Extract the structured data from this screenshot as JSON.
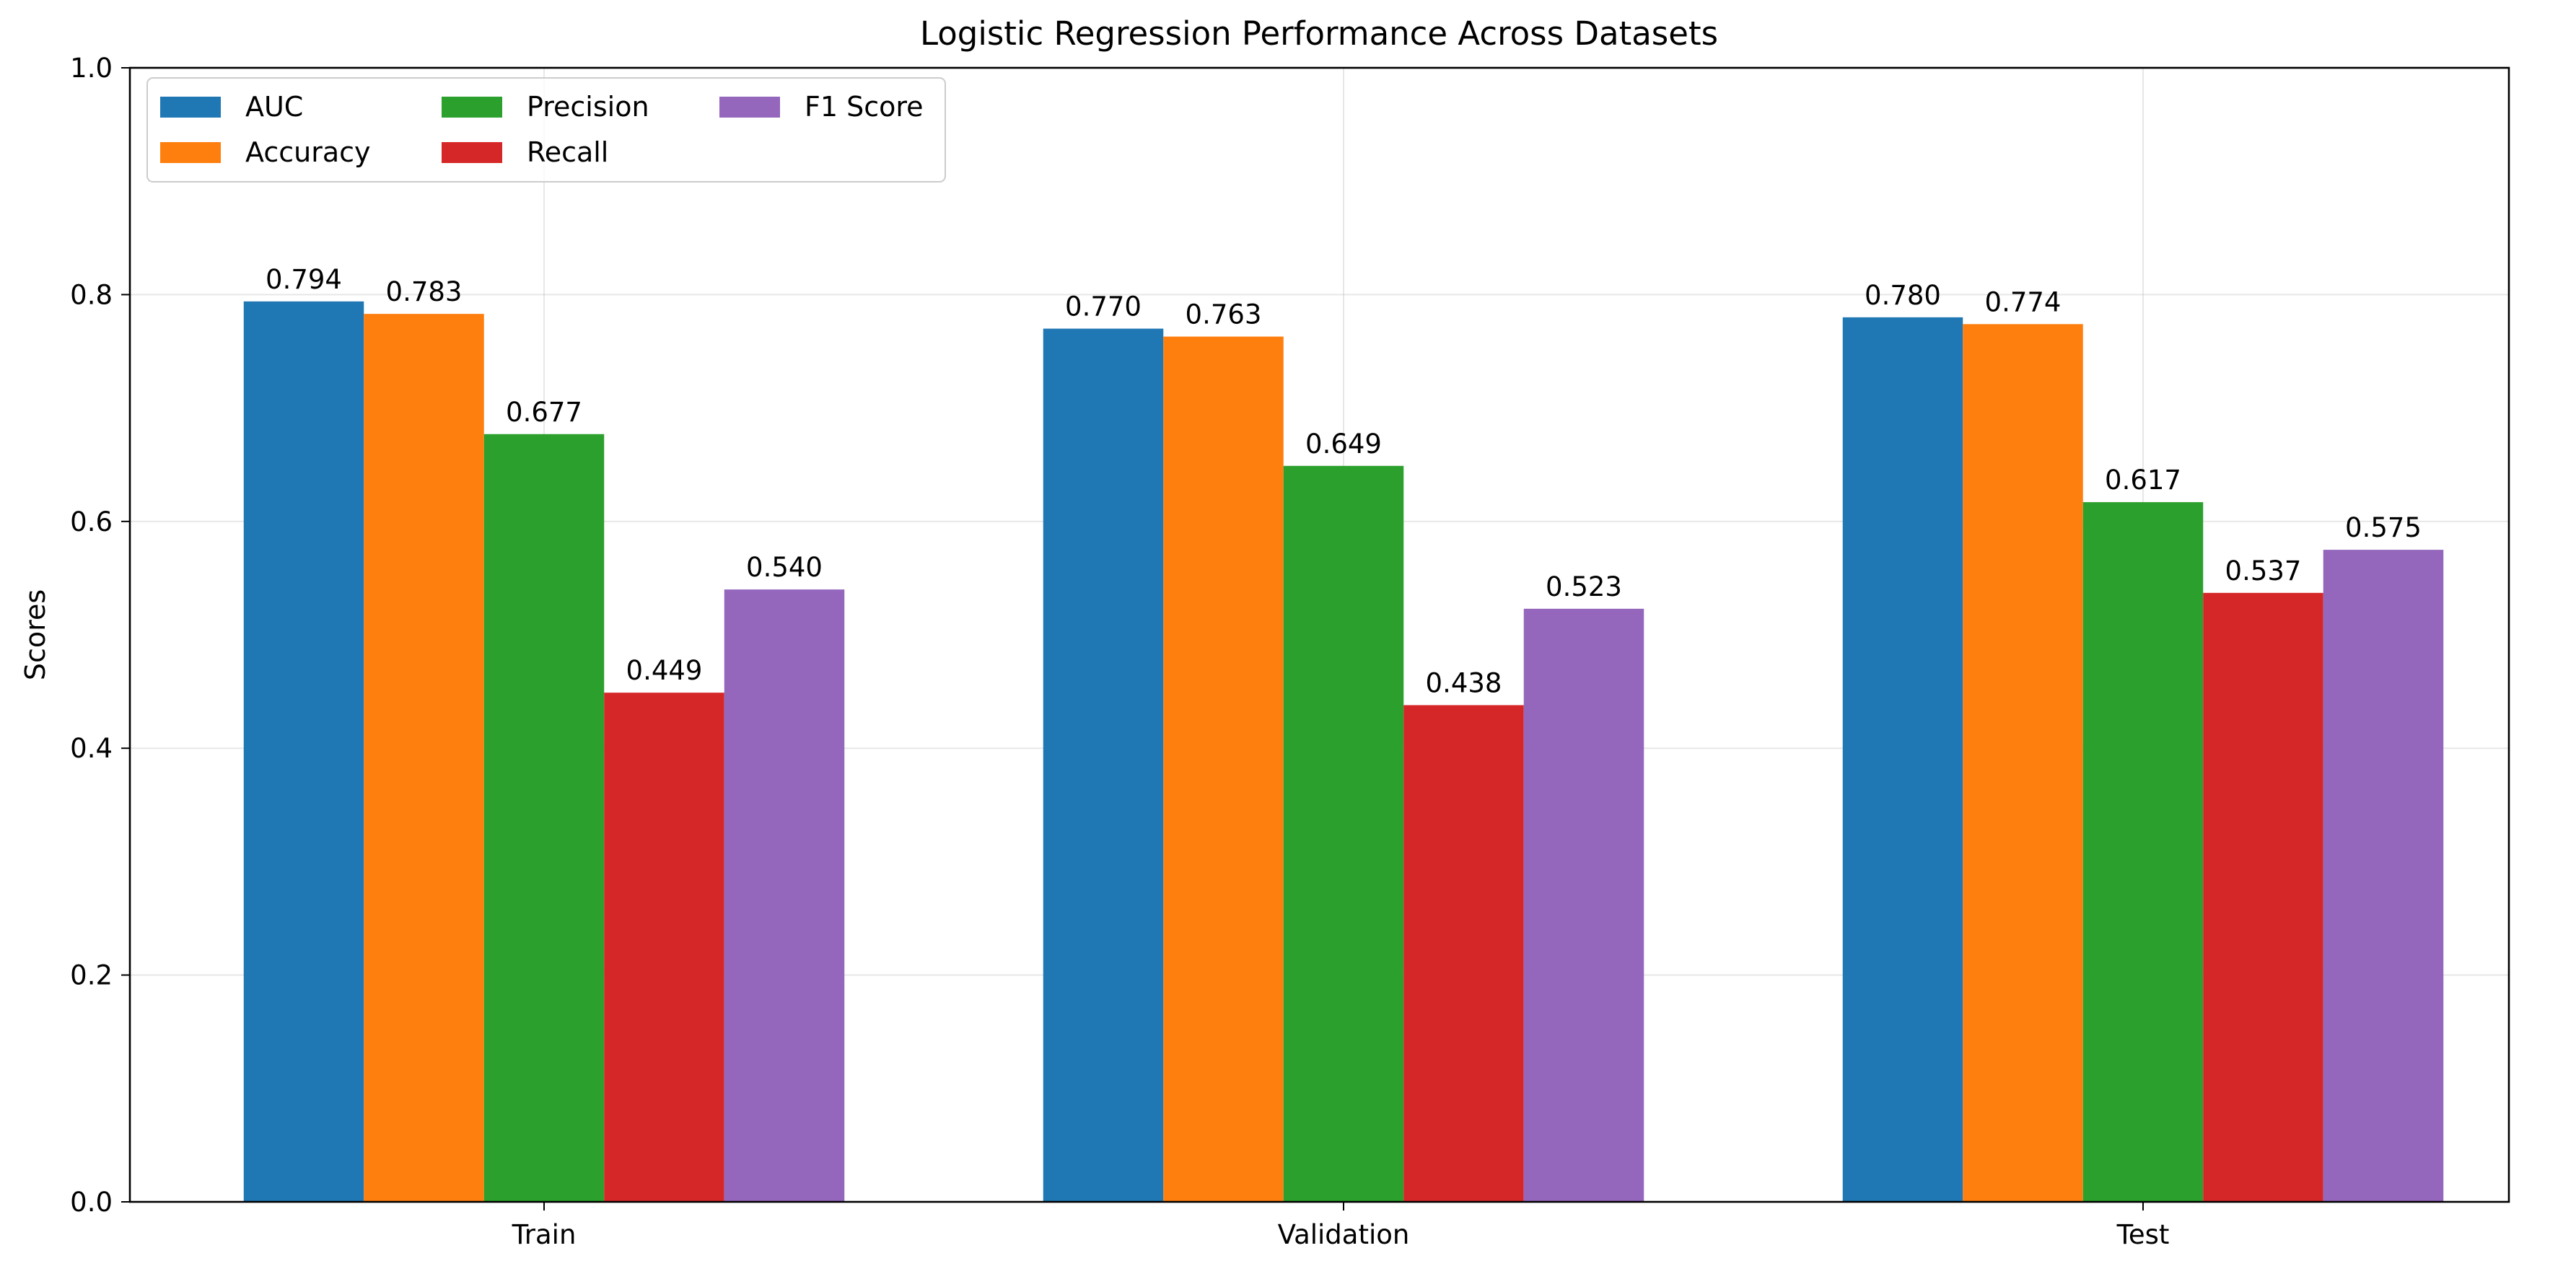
{
  "chart_data": {
    "type": "bar",
    "title": "Logistic Regression Performance Across Datasets",
    "xlabel": "",
    "ylabel": "Scores",
    "ylim": [
      0,
      1.0
    ],
    "yticks": [
      "0.0",
      "0.2",
      "0.4",
      "0.6",
      "0.8",
      "1.0"
    ],
    "grid": true,
    "legend_position": "top-left",
    "categories": [
      "Train",
      "Validation",
      "Test"
    ],
    "series": [
      {
        "name": "AUC",
        "color": "#1f77b4",
        "values": [
          0.794,
          0.77,
          0.78
        ],
        "labels": [
          "0.794",
          "0.770",
          "0.780"
        ]
      },
      {
        "name": "Accuracy",
        "color": "#ff7f0e",
        "values": [
          0.783,
          0.763,
          0.774
        ],
        "labels": [
          "0.783",
          "0.763",
          "0.774"
        ]
      },
      {
        "name": "Precision",
        "color": "#2ca02c",
        "values": [
          0.677,
          0.649,
          0.617
        ],
        "labels": [
          "0.677",
          "0.649",
          "0.617"
        ]
      },
      {
        "name": "Recall",
        "color": "#d62728",
        "values": [
          0.449,
          0.438,
          0.537
        ],
        "labels": [
          "0.449",
          "0.438",
          "0.537"
        ]
      },
      {
        "name": "F1 Score",
        "color": "#9467bd",
        "values": [
          0.54,
          0.523,
          0.575
        ],
        "labels": [
          "0.540",
          "0.523",
          "0.575"
        ]
      }
    ]
  }
}
